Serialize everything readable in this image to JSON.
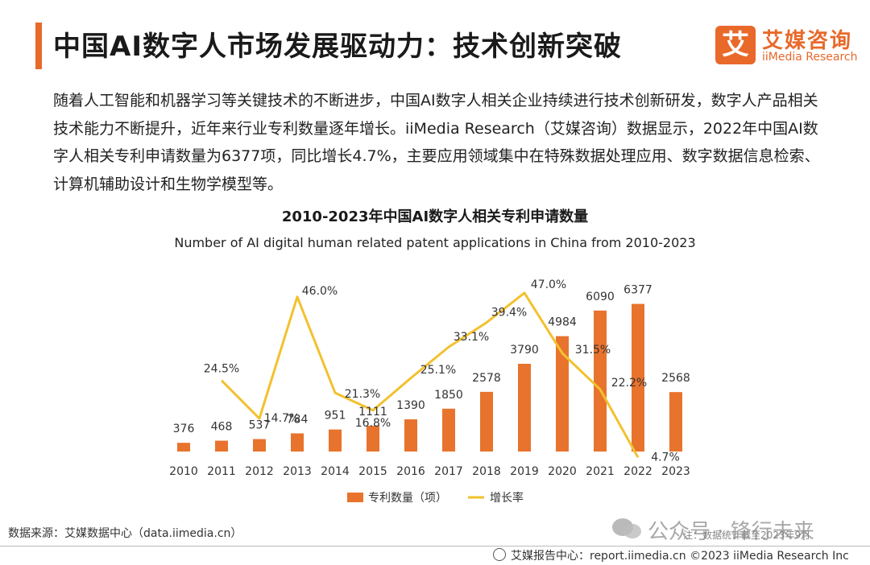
{
  "header": {
    "title": "中国AI数字人市场发展驱动力：技术创新突破",
    "logo_mark": "艾",
    "logo_cn": "艾媒咨询",
    "logo_en": "iiMedia Research"
  },
  "paragraph": "随着人工智能和机器学习等关键技术的不断进步，中国AI数字人相关企业持续进行技术创新研发，数字人产品相关技术能力不断提升，近年来行业专利数量逐年增长。iiMedia Research（艾媒咨询）数据显示，2022年中国AI数字人相关专利申请数量为6377项，同比增长4.7%，主要应用领域集中在特殊数据处理应用、数字数据信息检索、计算机辅助设计和生物学模型等。",
  "chart_data": {
    "type": "bar+line",
    "title": "2010-2023年中国AI数字人相关专利申请数量",
    "subtitle": "Number of AI digital human related patent applications in China from 2010-2023",
    "categories": [
      "2010",
      "2011",
      "2012",
      "2013",
      "2014",
      "2015",
      "2016",
      "2017",
      "2018",
      "2019",
      "2020",
      "2021",
      "2022",
      "2023"
    ],
    "series": [
      {
        "name": "专利数量（项）",
        "type": "bar",
        "color": "#e8732d",
        "values": [
          376,
          468,
          537,
          784,
          951,
          1111,
          1390,
          1850,
          2578,
          3790,
          4984,
          6090,
          6377,
          2568
        ]
      },
      {
        "name": "增长率",
        "type": "line",
        "color": "#f2c12e",
        "values": [
          null,
          24.5,
          14.7,
          46.0,
          21.3,
          16.8,
          25.1,
          33.1,
          39.4,
          47.0,
          31.5,
          22.2,
          4.7,
          null
        ],
        "labels": [
          "",
          "24.5%",
          "14.7%",
          "46.0%",
          "21.3%",
          "16.8%",
          "25.1%",
          "33.1%",
          "39.4%",
          "47.0%",
          "31.5%",
          "22.2%",
          "4.7%",
          ""
        ]
      }
    ],
    "bar_ylim": [
      0,
      7000
    ],
    "line_ylim": [
      0,
      50
    ],
    "legend": "bottom-center"
  },
  "footer": {
    "source": "数据来源：艾媒数据中心（data.iimedia.cn）",
    "watermark": "公众号 · 锋行未来",
    "watermark_small": "注：数据统计截至2023年9月",
    "bottom": "艾媒报告中心：report.iimedia.cn  ©2023  iiMedia Research  Inc"
  }
}
